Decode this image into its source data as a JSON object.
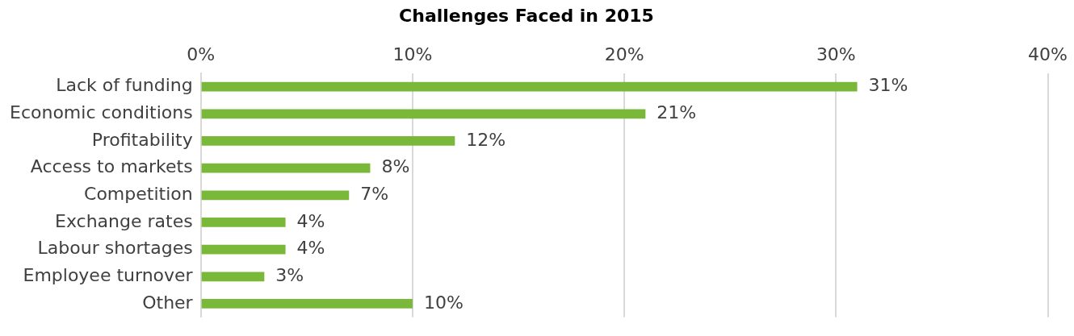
{
  "chart_data": {
    "type": "bar",
    "orientation": "horizontal",
    "title": "Challenges Faced in 2015",
    "categories": [
      "Lack of funding",
      "Economic conditions",
      "Profitability",
      "Access to markets",
      "Competition",
      "Exchange rates",
      "Labour shortages",
      "Employee turnover",
      "Other"
    ],
    "values": [
      31,
      21,
      12,
      8,
      7,
      4,
      4,
      3,
      10
    ],
    "value_labels": [
      "31%",
      "21%",
      "12%",
      "8%",
      "7%",
      "4%",
      "4%",
      "3%",
      "10%"
    ],
    "color": "#7ab83a",
    "xlim": [
      0,
      40
    ],
    "xticks": [
      {
        "value": 0,
        "label": "0%"
      },
      {
        "value": 10,
        "label": "10%"
      },
      {
        "value": 20,
        "label": "20%"
      },
      {
        "value": 30,
        "label": "30%"
      },
      {
        "value": 40,
        "label": "40%"
      }
    ],
    "grid": "x",
    "legend": false
  }
}
